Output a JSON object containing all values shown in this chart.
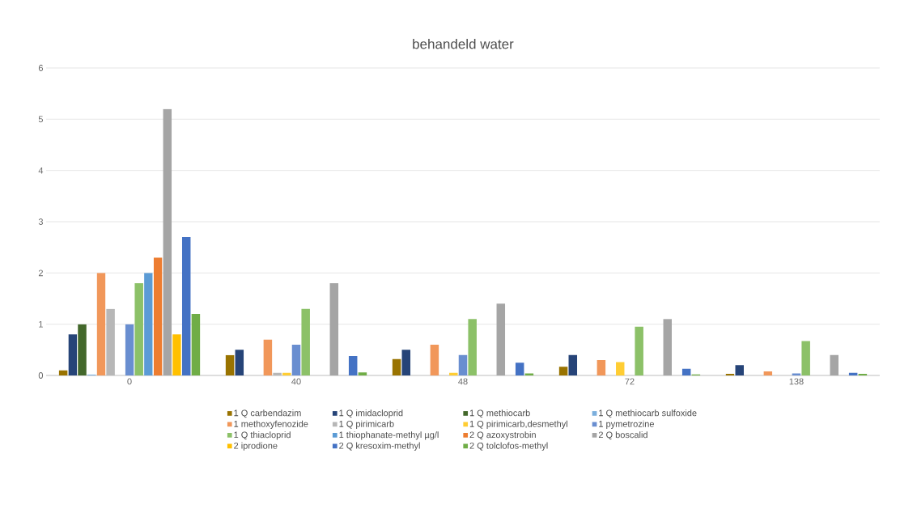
{
  "chart_data": {
    "type": "bar",
    "title": "behandeld water",
    "categories": [
      "0",
      "40",
      "48",
      "72",
      "138"
    ],
    "series": [
      {
        "name": "1 Q carbendazim",
        "color": "#997300",
        "values": [
          0.1,
          0.4,
          0.32,
          0.17,
          0.03
        ]
      },
      {
        "name": "1 Q imidacloprid",
        "color": "#264478",
        "values": [
          0.8,
          0.5,
          0.5,
          0.4,
          0.2
        ]
      },
      {
        "name": "1 Q methiocarb",
        "color": "#43682b",
        "values": [
          1.0,
          null,
          null,
          null,
          null
        ]
      },
      {
        "name": "1 Q methiocarb sulfoxide",
        "color": "#7cafdd",
        "values": [
          0.02,
          null,
          null,
          null,
          null
        ]
      },
      {
        "name": "1 methoxyfenozide",
        "color": "#f1975a",
        "values": [
          2.0,
          0.7,
          0.6,
          0.3,
          0.08
        ]
      },
      {
        "name": "1 Q pirimicarb",
        "color": "#b7b7b7",
        "values": [
          1.3,
          0.05,
          null,
          null,
          null
        ]
      },
      {
        "name": "1 Q pirimicarb,desmethyl",
        "color": "#ffcd33",
        "values": [
          null,
          0.05,
          0.05,
          0.26,
          null
        ]
      },
      {
        "name": "1 pymetrozine",
        "color": "#698ed0",
        "values": [
          1.0,
          0.6,
          0.4,
          null,
          0.04
        ]
      },
      {
        "name": "1 Q thiacloprid",
        "color": "#8cc168",
        "values": [
          1.8,
          1.3,
          1.1,
          0.95,
          0.67
        ]
      },
      {
        "name": "1 thiophanate-methyl µg/l",
        "color": "#5b9bd5",
        "values": [
          2.0,
          null,
          null,
          null,
          null
        ]
      },
      {
        "name": "2 Q azoxystrobin",
        "color": "#ed7d31",
        "values": [
          2.3,
          null,
          null,
          null,
          null
        ]
      },
      {
        "name": "2 Q boscalid",
        "color": "#a5a5a5",
        "values": [
          5.2,
          1.8,
          1.4,
          1.1,
          0.4
        ]
      },
      {
        "name": "2 iprodione",
        "color": "#ffc000",
        "values": [
          0.8,
          null,
          null,
          null,
          null
        ]
      },
      {
        "name": "2 Q kresoxim-methyl",
        "color": "#4472c4",
        "values": [
          2.7,
          0.38,
          0.25,
          0.13,
          0.05
        ]
      },
      {
        "name": "2 Q tolclofos-methyl",
        "color": "#70ad47",
        "values": [
          1.2,
          0.06,
          0.04,
          0.02,
          0.03
        ]
      }
    ],
    "ylim": [
      0,
      6
    ],
    "yticks": [
      0,
      1,
      2,
      3,
      4,
      5,
      6
    ],
    "grid": "y",
    "legend": "bottom"
  }
}
